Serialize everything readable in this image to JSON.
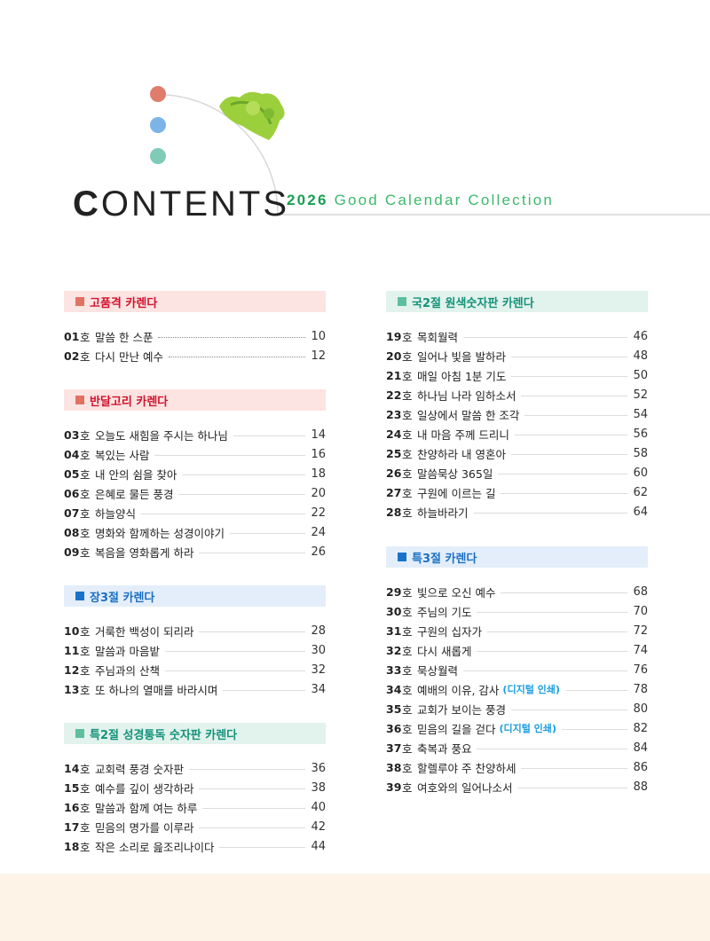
{
  "header": {
    "title_first": "C",
    "title_rest": "ONTENTS",
    "year": "2026",
    "subtitle": "Good Calendar Collection"
  },
  "colors": {
    "red": "#d4102c",
    "blue": "#1a6fc4",
    "green": "#139379",
    "dot1": "#e07c6c",
    "dot2": "#7cb4e8",
    "dot3": "#7fcbb8"
  },
  "ho": "호",
  "sections": [
    {
      "title": "고품격 카렌다",
      "items": [
        {
          "num": "01",
          "name": "말씀 한 스푼",
          "page": "10"
        },
        {
          "num": "02",
          "name": "다시 만난 예수",
          "page": "12"
        }
      ]
    },
    {
      "title": "반달고리 카렌다",
      "items": [
        {
          "num": "03",
          "name": "오늘도 새힘을 주시는 하나님",
          "page": "14"
        },
        {
          "num": "04",
          "name": "복있는 사람",
          "page": "16"
        },
        {
          "num": "05",
          "name": "내 안의 쉼을 찾아",
          "page": "18"
        },
        {
          "num": "06",
          "name": "은혜로 물든 풍경",
          "page": "20"
        },
        {
          "num": "07",
          "name": "하늘양식",
          "page": "22"
        },
        {
          "num": "08",
          "name": "명화와 함께하는 성경이야기",
          "page": "24"
        },
        {
          "num": "09",
          "name": "복음을 영화롭게 하라",
          "page": "26"
        }
      ]
    },
    {
      "title": "장3절 카렌다",
      "items": [
        {
          "num": "10",
          "name": "거룩한 백성이 되리라",
          "page": "28"
        },
        {
          "num": "11",
          "name": "말씀과 마음밭",
          "page": "30"
        },
        {
          "num": "12",
          "name": "주님과의 산책",
          "page": "32"
        },
        {
          "num": "13",
          "name": "또 하나의 열매를 바라시며",
          "page": "34"
        }
      ]
    },
    {
      "title": "특2절 성경통독 숫자판 카렌다",
      "items": [
        {
          "num": "14",
          "name": "교회력 풍경 숫자판",
          "page": "36"
        },
        {
          "num": "15",
          "name": "예수를 깊이 생각하라",
          "page": "38"
        },
        {
          "num": "16",
          "name": "말씀과 함께 여는 하루",
          "page": "40"
        },
        {
          "num": "17",
          "name": "믿음의 명가를 이루라",
          "page": "42"
        },
        {
          "num": "18",
          "name": "작은 소리로 읊조리나이다",
          "page": "44"
        }
      ]
    },
    {
      "title": "국2절 원색숫자판 카렌다",
      "items": [
        {
          "num": "19",
          "name": "목회월력",
          "page": "46"
        },
        {
          "num": "20",
          "name": "일어나 빛을 발하라",
          "page": "48"
        },
        {
          "num": "21",
          "name": "매일 아침 1분 기도",
          "page": "50"
        },
        {
          "num": "22",
          "name": "하나님 나라 임하소서",
          "page": "52"
        },
        {
          "num": "23",
          "name": "일상에서 말씀 한 조각",
          "page": "54"
        },
        {
          "num": "24",
          "name": "내 마음 주께 드리니",
          "page": "56"
        },
        {
          "num": "25",
          "name": "찬양하라 내 영혼아",
          "page": "58"
        },
        {
          "num": "26",
          "name": "말씀묵상 365일",
          "page": "60"
        },
        {
          "num": "27",
          "name": "구원에 이르는 길",
          "page": "62"
        },
        {
          "num": "28",
          "name": "하늘바라기",
          "page": "64"
        }
      ]
    },
    {
      "title": "특3절 카렌다",
      "items": [
        {
          "num": "29",
          "name": "빛으로 오신 예수",
          "page": "68"
        },
        {
          "num": "30",
          "name": "주님의 기도",
          "page": "70"
        },
        {
          "num": "31",
          "name": "구원의 십자가",
          "page": "72"
        },
        {
          "num": "32",
          "name": "다시 새롭게",
          "page": "74"
        },
        {
          "num": "33",
          "name": "묵상월력",
          "page": "76"
        },
        {
          "num": "34",
          "name": "예배의 이유, 감사",
          "note": "(디지털 인쇄)",
          "page": "78"
        },
        {
          "num": "35",
          "name": "교회가 보이는 풍경",
          "page": "80"
        },
        {
          "num": "36",
          "name": "믿음의 길을 걷다",
          "note": "(디지털 인쇄)",
          "page": "82"
        },
        {
          "num": "37",
          "name": "축복과 풍요",
          "page": "84"
        },
        {
          "num": "38",
          "name": "할렐루야 주 찬양하세",
          "page": "86"
        },
        {
          "num": "39",
          "name": "여호와의 일어나소서",
          "page": "88"
        }
      ]
    }
  ]
}
